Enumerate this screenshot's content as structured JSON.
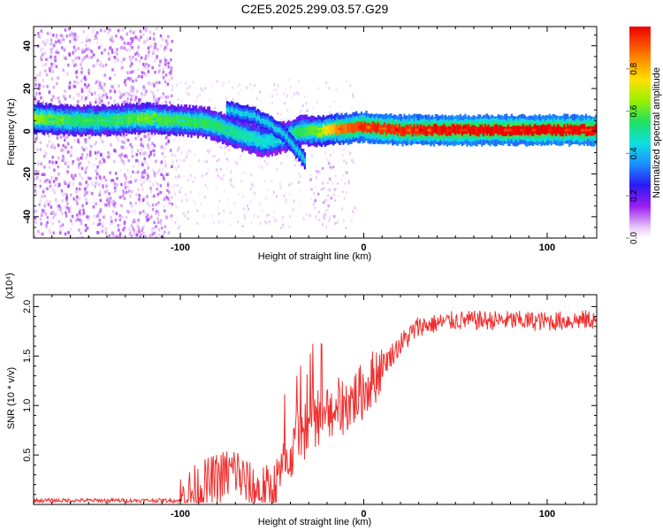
{
  "figure_title": "C2E5.2025.299.03.57.G29",
  "chart_data": [
    {
      "type": "heatmap",
      "title": "C2E5.2025.299.03.57.G29",
      "xlabel": "Height of straight line (km)",
      "ylabel": "Frequency (Hz)",
      "xlim": [
        -180,
        127
      ],
      "ylim": [
        -50,
        49
      ],
      "xticks": [
        -100,
        0,
        100
      ],
      "xtick_labels": [
        "-100",
        "0",
        "100"
      ],
      "yticks": [
        -40,
        -20,
        0,
        20,
        40
      ],
      "ytick_labels": [
        "-40",
        "-20",
        "0",
        "20",
        "40"
      ],
      "colorbar": {
        "label": "Normalized spectral amplitude",
        "range": [
          0,
          1
        ],
        "ticks": [
          0.0,
          0.2,
          0.4,
          0.6,
          0.8
        ],
        "tick_labels": [
          "0.0",
          "0.2",
          "0.4",
          "0.6",
          "0.8"
        ]
      },
      "ridge": [
        {
          "x": -180,
          "f": 6,
          "amp": 0.55
        },
        {
          "x": -160,
          "f": 5,
          "amp": 0.45
        },
        {
          "x": -140,
          "f": 5,
          "amp": 0.45
        },
        {
          "x": -120,
          "f": 6,
          "amp": 0.5
        },
        {
          "x": -100,
          "f": 5,
          "amp": 0.45
        },
        {
          "x": -85,
          "f": 4,
          "amp": 0.45
        },
        {
          "x": -70,
          "f": -1,
          "amp": 0.4
        },
        {
          "x": -55,
          "f": -5,
          "amp": 0.35
        },
        {
          "x": -45,
          "f": -3,
          "amp": 0.35
        },
        {
          "x": -35,
          "f": 0,
          "amp": 0.45
        },
        {
          "x": -25,
          "f": 0,
          "amp": 0.55
        },
        {
          "x": -15,
          "f": 1,
          "amp": 0.75
        },
        {
          "x": 0,
          "f": 2,
          "amp": 0.85
        },
        {
          "x": 20,
          "f": 0.5,
          "amp": 0.85
        },
        {
          "x": 60,
          "f": 0.5,
          "amp": 0.9
        },
        {
          "x": 100,
          "f": 0.5,
          "amp": 0.9
        },
        {
          "x": 127,
          "f": 0.5,
          "amp": 0.9
        }
      ],
      "secondary_branch": [
        {
          "x": -75,
          "f": 10
        },
        {
          "x": -60,
          "f": 7
        },
        {
          "x": -45,
          "f": 0
        },
        {
          "x": -32,
          "f": -14
        }
      ]
    },
    {
      "type": "line",
      "xlabel": "Height of straight line (km)",
      "ylabel": "SNR (10 * v/v)",
      "y_multiplier": "(x10⁴)",
      "xlim": [
        -180,
        127
      ],
      "ylim": [
        0,
        2.12
      ],
      "xticks": [
        -100,
        0,
        100
      ],
      "xtick_labels": [
        "-100",
        "0",
        "100"
      ],
      "yticks": [
        0.5,
        1.0,
        1.5,
        2.0
      ],
      "ytick_labels": [
        "0.5",
        "1.0",
        "1.5",
        "2.0"
      ],
      "series": [
        {
          "name": "SNR",
          "color": "#f03030",
          "trend": [
            {
              "x": -180,
              "y": 0.04
            },
            {
              "x": -100,
              "y": 0.04
            },
            {
              "x": -90,
              "y": 0.15
            },
            {
              "x": -70,
              "y": 0.35
            },
            {
              "x": -62,
              "y": 0.15
            },
            {
              "x": -50,
              "y": 0.12
            },
            {
              "x": -40,
              "y": 0.5
            },
            {
              "x": -30,
              "y": 0.8
            },
            {
              "x": -20,
              "y": 0.95
            },
            {
              "x": -10,
              "y": 1.0
            },
            {
              "x": 0,
              "y": 1.15
            },
            {
              "x": 10,
              "y": 1.4
            },
            {
              "x": 20,
              "y": 1.62
            },
            {
              "x": 30,
              "y": 1.8
            },
            {
              "x": 50,
              "y": 1.86
            },
            {
              "x": 80,
              "y": 1.86
            },
            {
              "x": 100,
              "y": 1.85
            },
            {
              "x": 127,
              "y": 1.87
            }
          ]
        }
      ]
    }
  ]
}
